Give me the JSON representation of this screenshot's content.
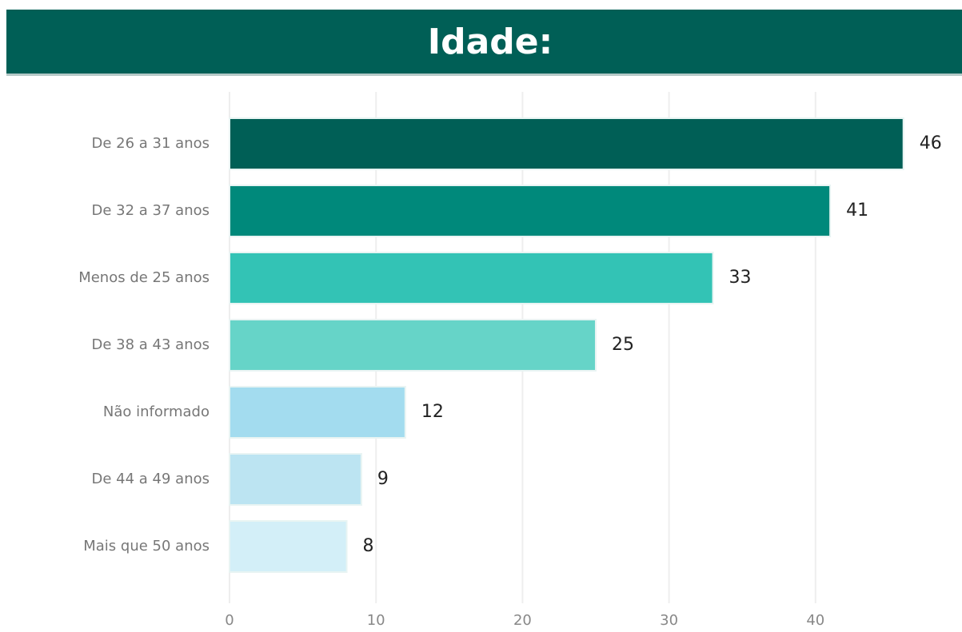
{
  "chart_data": {
    "type": "hbar",
    "title": "Idade:",
    "categories": [
      "De 26 a 31 anos",
      "De 32 a 37 anos",
      "Menos de 25 anos",
      "De 38 a 43 anos",
      "Não informado",
      "De 44 a 49 anos",
      "Mais que 50 anos"
    ],
    "values": [
      46,
      41,
      33,
      25,
      12,
      9,
      8
    ],
    "colors": [
      "#005f56",
      "#00897b",
      "#33c3b5",
      "#66d4c8",
      "#a3dcef",
      "#bce4f2",
      "#d3eff8"
    ],
    "xlim": [
      0,
      50
    ],
    "xticks": [
      0,
      10,
      20,
      30,
      40
    ],
    "grid": true
  }
}
